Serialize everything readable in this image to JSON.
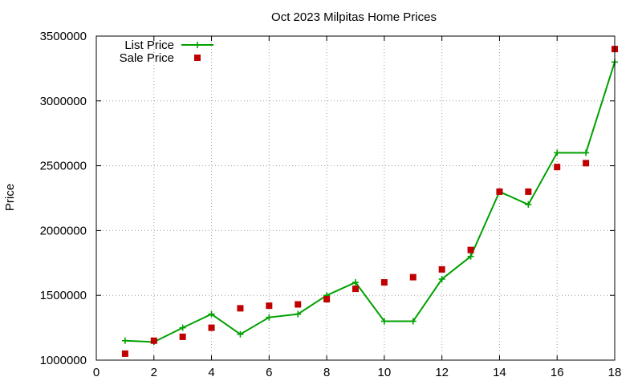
{
  "chart_data": {
    "type": "line",
    "title": "Oct 2023 Milpitas Home Prices",
    "xlabel": "",
    "ylabel": "Price",
    "xlim": [
      0,
      18
    ],
    "ylim": [
      1000000,
      3500000
    ],
    "xticks": [
      0,
      2,
      4,
      6,
      8,
      10,
      12,
      14,
      16,
      18
    ],
    "yticks": [
      1000000,
      1500000,
      2000000,
      2500000,
      3000000,
      3500000
    ],
    "xtick_labels": [
      "0",
      "2",
      "4",
      "6",
      "8",
      "10",
      "12",
      "14",
      "16",
      "18"
    ],
    "ytick_labels": [
      "1000000",
      "1500000",
      "2000000",
      "2500000",
      "3000000",
      "3500000"
    ],
    "grid": true,
    "legend_position": "top-left",
    "series": [
      {
        "name": "List Price",
        "style": "line-points",
        "marker": "plus",
        "color": "#00a000",
        "x": [
          1,
          2,
          3,
          4,
          5,
          6,
          7,
          8,
          9,
          10,
          11,
          12,
          13,
          14,
          15,
          16,
          17,
          18
        ],
        "y": [
          1150000,
          1140000,
          1250000,
          1355000,
          1200000,
          1330000,
          1355000,
          1500000,
          1600000,
          1300000,
          1300000,
          1625000,
          1800000,
          2300000,
          2200000,
          2600000,
          2600000,
          3300000
        ]
      },
      {
        "name": "Sale Price",
        "style": "points",
        "marker": "square",
        "color": "#c00000",
        "x": [
          1,
          2,
          3,
          4,
          5,
          6,
          7,
          8,
          9,
          10,
          11,
          12,
          13,
          14,
          15,
          16,
          17,
          18
        ],
        "y": [
          1050000,
          1150000,
          1180000,
          1250000,
          1400000,
          1420000,
          1430000,
          1470000,
          1550000,
          1600000,
          1640000,
          1700000,
          1850000,
          2300000,
          2300000,
          2490000,
          2520000,
          3400000
        ]
      }
    ]
  }
}
